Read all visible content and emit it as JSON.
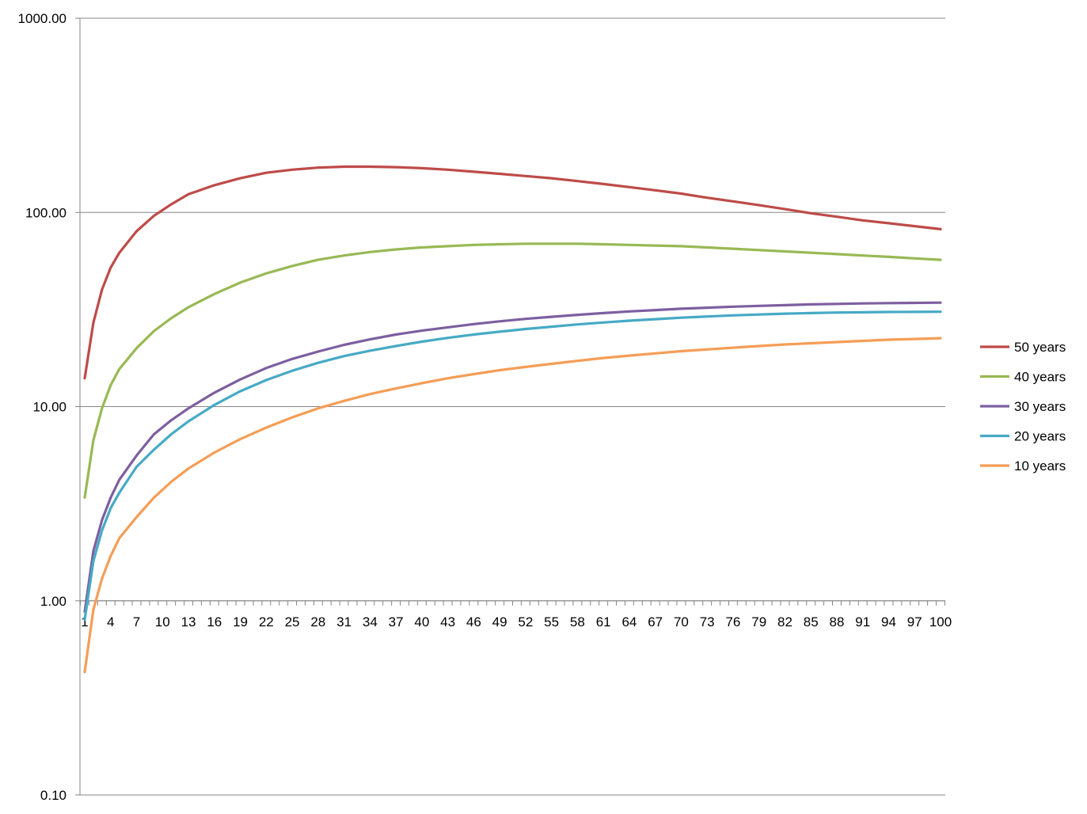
{
  "chart_data": {
    "type": "line",
    "title": "",
    "xlabel": "",
    "ylabel": "",
    "y_scale": "log",
    "ylim": [
      0.1,
      1000
    ],
    "y_ticks": [
      {
        "value": 0.1,
        "label": "0.10"
      },
      {
        "value": 1,
        "label": "1.00"
      },
      {
        "value": 10,
        "label": "10.00"
      },
      {
        "value": 100,
        "label": "100.00"
      },
      {
        "value": 1000,
        "label": "1000.00"
      }
    ],
    "x_range": [
      1,
      100
    ],
    "x_tick_labels": [
      "1",
      "4",
      "7",
      "10",
      "13",
      "16",
      "19",
      "22",
      "25",
      "28",
      "31",
      "34",
      "37",
      "40",
      "43",
      "46",
      "49",
      "52",
      "55",
      "58",
      "61",
      "64",
      "67",
      "70",
      "73",
      "76",
      "79",
      "82",
      "85",
      "88",
      "91",
      "94",
      "97",
      "100"
    ],
    "x_axis_crosses_at": 1,
    "grid": "horizontal major gridlines",
    "legend_position": "right",
    "series": [
      {
        "name": "50 years",
        "color": "#be4b48",
        "points": [
          [
            1,
            14
          ],
          [
            2,
            27
          ],
          [
            3,
            40
          ],
          [
            4,
            52
          ],
          [
            5,
            62
          ],
          [
            7,
            80
          ],
          [
            9,
            96
          ],
          [
            11,
            110
          ],
          [
            13,
            124
          ],
          [
            16,
            138
          ],
          [
            19,
            150
          ],
          [
            22,
            160
          ],
          [
            25,
            166
          ],
          [
            28,
            170
          ],
          [
            31,
            172
          ],
          [
            34,
            172
          ],
          [
            37,
            171
          ],
          [
            40,
            169
          ],
          [
            43,
            166
          ],
          [
            46,
            162
          ],
          [
            49,
            158
          ],
          [
            52,
            154
          ],
          [
            55,
            150
          ],
          [
            58,
            145
          ],
          [
            61,
            140
          ],
          [
            64,
            135
          ],
          [
            67,
            130
          ],
          [
            70,
            125
          ],
          [
            73,
            119
          ],
          [
            76,
            114
          ],
          [
            79,
            109
          ],
          [
            82,
            104
          ],
          [
            85,
            99
          ],
          [
            88,
            95
          ],
          [
            91,
            91
          ],
          [
            94,
            88
          ],
          [
            97,
            85
          ],
          [
            100,
            82
          ]
        ]
      },
      {
        "name": "40 years",
        "color": "#98b954",
        "points": [
          [
            1,
            3.4
          ],
          [
            2,
            6.7
          ],
          [
            3,
            9.8
          ],
          [
            4,
            12.9
          ],
          [
            5,
            15.6
          ],
          [
            7,
            20
          ],
          [
            9,
            24.5
          ],
          [
            11,
            28.5
          ],
          [
            13,
            32.5
          ],
          [
            16,
            38
          ],
          [
            19,
            43.5
          ],
          [
            22,
            48.5
          ],
          [
            25,
            53
          ],
          [
            28,
            57
          ],
          [
            31,
            60
          ],
          [
            34,
            62.5
          ],
          [
            37,
            64.5
          ],
          [
            40,
            66
          ],
          [
            43,
            67
          ],
          [
            46,
            68
          ],
          [
            49,
            68.5
          ],
          [
            52,
            69
          ],
          [
            55,
            69
          ],
          [
            58,
            69
          ],
          [
            61,
            68.5
          ],
          [
            64,
            68
          ],
          [
            67,
            67.5
          ],
          [
            70,
            67
          ],
          [
            73,
            66
          ],
          [
            76,
            65
          ],
          [
            79,
            64
          ],
          [
            82,
            63
          ],
          [
            85,
            62
          ],
          [
            88,
            61
          ],
          [
            91,
            60
          ],
          [
            94,
            59
          ],
          [
            97,
            58
          ],
          [
            100,
            57
          ]
        ]
      },
      {
        "name": "30 years",
        "color": "#7d5fa0",
        "points": [
          [
            1,
            0.88
          ],
          [
            2,
            1.8
          ],
          [
            3,
            2.6
          ],
          [
            4,
            3.4
          ],
          [
            5,
            4.2
          ],
          [
            7,
            5.6
          ],
          [
            9,
            7.2
          ],
          [
            11,
            8.5
          ],
          [
            13,
            9.8
          ],
          [
            16,
            11.8
          ],
          [
            19,
            13.8
          ],
          [
            22,
            15.8
          ],
          [
            25,
            17.6
          ],
          [
            28,
            19.2
          ],
          [
            31,
            20.8
          ],
          [
            34,
            22.2
          ],
          [
            37,
            23.5
          ],
          [
            40,
            24.6
          ],
          [
            43,
            25.6
          ],
          [
            46,
            26.6
          ],
          [
            49,
            27.5
          ],
          [
            52,
            28.3
          ],
          [
            55,
            29
          ],
          [
            58,
            29.7
          ],
          [
            61,
            30.3
          ],
          [
            64,
            30.9
          ],
          [
            67,
            31.4
          ],
          [
            70,
            31.9
          ],
          [
            73,
            32.3
          ],
          [
            76,
            32.7
          ],
          [
            79,
            33
          ],
          [
            82,
            33.3
          ],
          [
            85,
            33.6
          ],
          [
            88,
            33.8
          ],
          [
            91,
            34
          ],
          [
            94,
            34.1
          ],
          [
            97,
            34.2
          ],
          [
            100,
            34.3
          ]
        ]
      },
      {
        "name": "20 years",
        "color": "#46aac5",
        "points": [
          [
            1,
            0.8
          ],
          [
            2,
            1.6
          ],
          [
            3,
            2.3
          ],
          [
            4,
            3
          ],
          [
            5,
            3.6
          ],
          [
            7,
            4.9
          ],
          [
            9,
            6
          ],
          [
            11,
            7.2
          ],
          [
            13,
            8.4
          ],
          [
            16,
            10.2
          ],
          [
            19,
            12
          ],
          [
            22,
            13.7
          ],
          [
            25,
            15.3
          ],
          [
            28,
            16.8
          ],
          [
            31,
            18.2
          ],
          [
            34,
            19.4
          ],
          [
            37,
            20.5
          ],
          [
            40,
            21.6
          ],
          [
            43,
            22.6
          ],
          [
            46,
            23.5
          ],
          [
            49,
            24.3
          ],
          [
            52,
            25.1
          ],
          [
            55,
            25.8
          ],
          [
            58,
            26.5
          ],
          [
            61,
            27.1
          ],
          [
            64,
            27.7
          ],
          [
            67,
            28.2
          ],
          [
            70,
            28.7
          ],
          [
            73,
            29.1
          ],
          [
            76,
            29.5
          ],
          [
            79,
            29.8
          ],
          [
            82,
            30.1
          ],
          [
            85,
            30.3
          ],
          [
            88,
            30.5
          ],
          [
            91,
            30.6
          ],
          [
            94,
            30.7
          ],
          [
            97,
            30.75
          ],
          [
            100,
            30.8
          ]
        ]
      },
      {
        "name": "10 years",
        "color": "#f59d56",
        "points": [
          [
            1,
            0.43
          ],
          [
            2,
            0.9
          ],
          [
            3,
            1.3
          ],
          [
            4,
            1.7
          ],
          [
            5,
            2.1
          ],
          [
            7,
            2.7
          ],
          [
            9,
            3.4
          ],
          [
            11,
            4.1
          ],
          [
            13,
            4.8
          ],
          [
            16,
            5.8
          ],
          [
            19,
            6.8
          ],
          [
            22,
            7.8
          ],
          [
            25,
            8.8
          ],
          [
            28,
            9.8
          ],
          [
            31,
            10.7
          ],
          [
            34,
            11.6
          ],
          [
            37,
            12.4
          ],
          [
            40,
            13.2
          ],
          [
            43,
            14
          ],
          [
            46,
            14.7
          ],
          [
            49,
            15.4
          ],
          [
            52,
            16
          ],
          [
            55,
            16.6
          ],
          [
            58,
            17.2
          ],
          [
            61,
            17.8
          ],
          [
            64,
            18.3
          ],
          [
            67,
            18.8
          ],
          [
            70,
            19.3
          ],
          [
            73,
            19.7
          ],
          [
            76,
            20.1
          ],
          [
            79,
            20.5
          ],
          [
            82,
            20.9
          ],
          [
            85,
            21.2
          ],
          [
            88,
            21.5
          ],
          [
            91,
            21.8
          ],
          [
            94,
            22.1
          ],
          [
            97,
            22.3
          ],
          [
            100,
            22.5
          ]
        ]
      }
    ]
  }
}
